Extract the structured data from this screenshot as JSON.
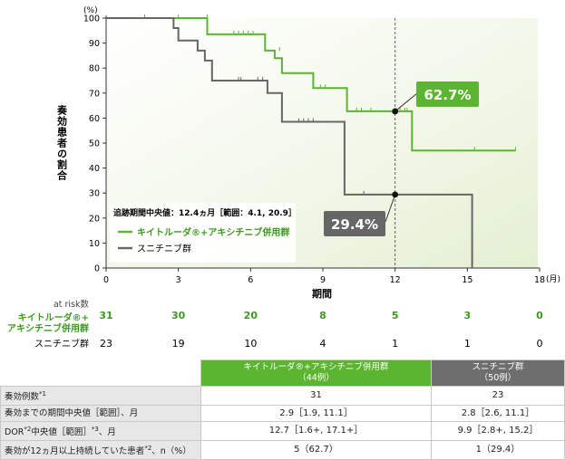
{
  "chart_data": {
    "type": "line",
    "y_unit": "(%)",
    "x_unit": "(月)",
    "xlabel": "期間",
    "ylabel": "奏効患者の割合",
    "xlim": [
      0,
      18
    ],
    "ylim": [
      0,
      100
    ],
    "x_ticks": [
      "0",
      "3",
      "6",
      "9",
      "12",
      "15",
      "18"
    ],
    "y_ticks": [
      "0",
      "10",
      "20",
      "30",
      "40",
      "50",
      "60",
      "70",
      "80",
      "90",
      "100"
    ],
    "annotation": "追跡期間中央値：12.4ヵ月［範囲：4.1, 20.9］",
    "marker_x": 12,
    "series": [
      {
        "name": "キイトルーダ®+アキシチニブ併用群",
        "color": "#5cb531",
        "steps": [
          [
            0,
            100
          ],
          [
            4.2,
            100
          ],
          [
            4.2,
            93.5
          ],
          [
            6.6,
            93.5
          ],
          [
            6.6,
            87
          ],
          [
            7.0,
            87
          ],
          [
            7.0,
            84
          ],
          [
            7.3,
            84
          ],
          [
            7.3,
            78
          ],
          [
            8.6,
            78
          ],
          [
            8.6,
            72
          ],
          [
            10.0,
            72
          ],
          [
            10.0,
            62.7
          ],
          [
            12.7,
            62.7
          ],
          [
            12.7,
            47
          ],
          [
            17.0,
            47
          ]
        ],
        "censors": [
          [
            1.6,
            100
          ],
          [
            3.0,
            100
          ],
          [
            4.2,
            100
          ],
          [
            5.3,
            93.5
          ],
          [
            5.5,
            93.5
          ],
          [
            5.7,
            93.5
          ],
          [
            5.9,
            93.5
          ],
          [
            6.1,
            93.5
          ],
          [
            7.2,
            87
          ],
          [
            8.9,
            72
          ],
          [
            9.1,
            72
          ],
          [
            10.4,
            62.7
          ],
          [
            10.6,
            62.7
          ],
          [
            11.0,
            62.7
          ],
          [
            12.2,
            62.7
          ],
          [
            12.4,
            62.7
          ],
          [
            12.5,
            62.7
          ],
          [
            15.3,
            47
          ],
          [
            17.0,
            47
          ]
        ],
        "callout": "62.7%",
        "callout_y": 62.7
      },
      {
        "name": "スニチニブ群",
        "color": "#666666",
        "steps": [
          [
            0,
            100
          ],
          [
            2.8,
            100
          ],
          [
            2.8,
            96
          ],
          [
            3.0,
            96
          ],
          [
            3.0,
            91
          ],
          [
            3.8,
            91
          ],
          [
            3.8,
            87
          ],
          [
            4.1,
            87
          ],
          [
            4.1,
            83
          ],
          [
            4.4,
            83
          ],
          [
            4.4,
            75
          ],
          [
            6.7,
            75
          ],
          [
            6.7,
            70
          ],
          [
            7.3,
            70
          ],
          [
            7.3,
            58.5
          ],
          [
            9.9,
            58.5
          ],
          [
            9.9,
            29.4
          ],
          [
            15.2,
            29.4
          ],
          [
            15.2,
            0
          ]
        ],
        "censors": [
          [
            5.5,
            75
          ],
          [
            5.6,
            75
          ],
          [
            6.3,
            75
          ],
          [
            6.5,
            75
          ],
          [
            8.0,
            58.5
          ],
          [
            8.2,
            58.5
          ],
          [
            8.4,
            58.5
          ],
          [
            8.6,
            58.5
          ],
          [
            10.7,
            29.4
          ]
        ],
        "callout": "29.4%",
        "callout_y": 29.4
      }
    ],
    "at_risk_title": "at risk数",
    "at_risk": [
      {
        "label": "キイトルーダ®+\nアキシチニブ併用群",
        "values": [
          "31",
          "30",
          "20",
          "8",
          "5",
          "3",
          "0"
        ]
      },
      {
        "label": "スニチニブ群",
        "values": [
          "23",
          "19",
          "10",
          "4",
          "1",
          "1",
          "0"
        ]
      }
    ]
  },
  "table": {
    "headers": [
      "キイトルーダ®+アキシチニブ併用群\n（44例）",
      "スニチニブ群\n（50例）"
    ],
    "rows": [
      {
        "label": "奏効例数*1",
        "values": [
          "31",
          "23"
        ]
      },
      {
        "label": "奏効までの期間中央値［範囲］、月",
        "values": [
          "2.9［1.9, 11.1］",
          "2.8［2.6, 11.1］"
        ]
      },
      {
        "label": "DOR*2中央値［範囲］*3、月",
        "values": [
          "12.7［1.6+, 17.1+］",
          "9.9［2.8+, 15.2］"
        ]
      },
      {
        "label": "奏効が12ヵ月以上持続していた患者*2、n（%）",
        "values": [
          "5（62.7）",
          "1（29.4）"
        ]
      }
    ]
  }
}
